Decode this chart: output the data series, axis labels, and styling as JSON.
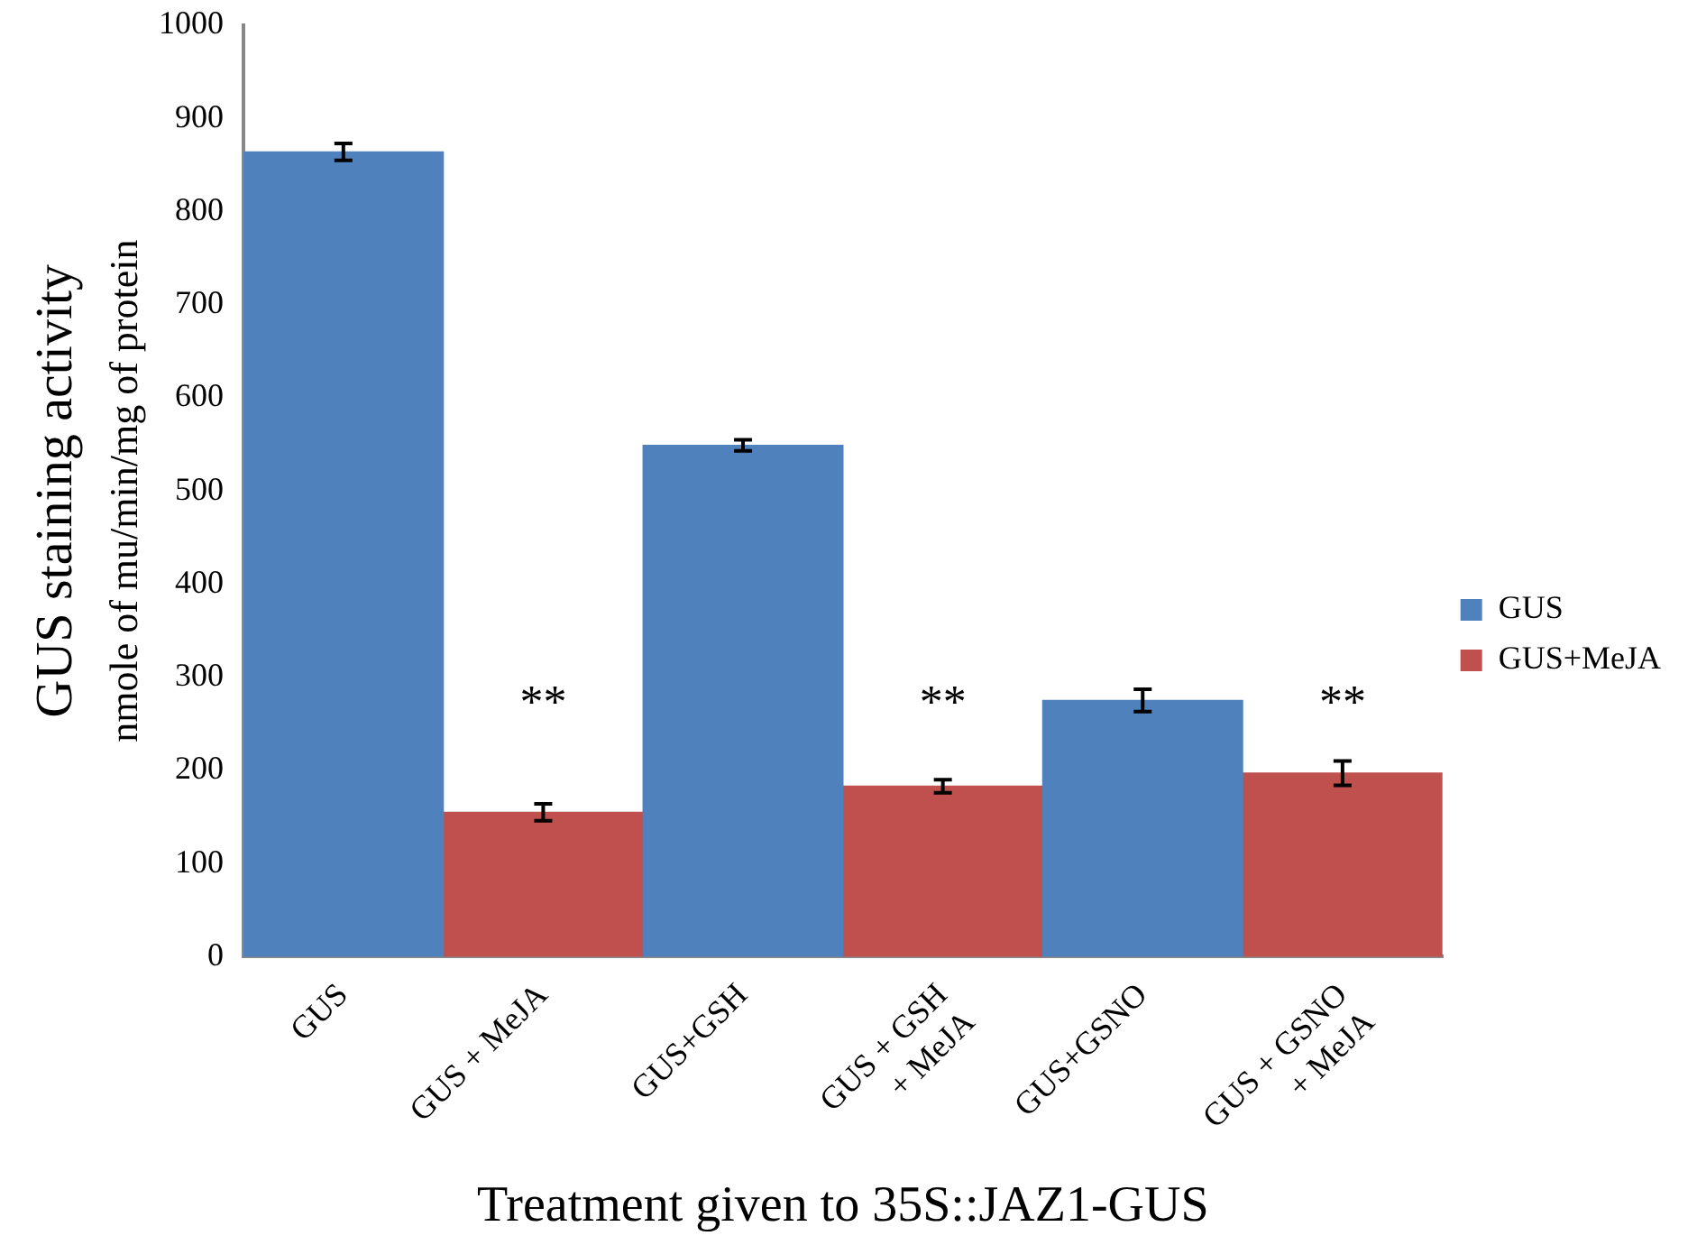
{
  "chart_data": {
    "type": "bar",
    "xlabel": "Treatment given to 35S::JAZ1-GUS",
    "ylabel": "GUS staining activity\nnmole of mu/min/mg of protein",
    "categories": [
      "GUS",
      "GUS + MeJA",
      "GUS+GSH",
      "GUS + GSH\n+ MeJA",
      "GUS+GSNO",
      "GUS + GSNO\n+ MeJA"
    ],
    "series": [
      {
        "name": "GUS",
        "color": "#4f81bd",
        "values": [
          864,
          null,
          549,
          null,
          275,
          null
        ],
        "errors": [
          9,
          null,
          6,
          null,
          12,
          null
        ]
      },
      {
        "name": "GUS+MeJA",
        "color": "#c0504d",
        "values": [
          null,
          155,
          null,
          183,
          null,
          197
        ],
        "errors": [
          null,
          9,
          null,
          7,
          null,
          13
        ]
      }
    ],
    "ylim": [
      0,
      1000
    ],
    "yticks": [
      0,
      100,
      200,
      300,
      400,
      500,
      600,
      700,
      800,
      900,
      1000
    ],
    "grid": false,
    "legend": "right",
    "annotations": [
      "**",
      "**",
      "**"
    ]
  }
}
